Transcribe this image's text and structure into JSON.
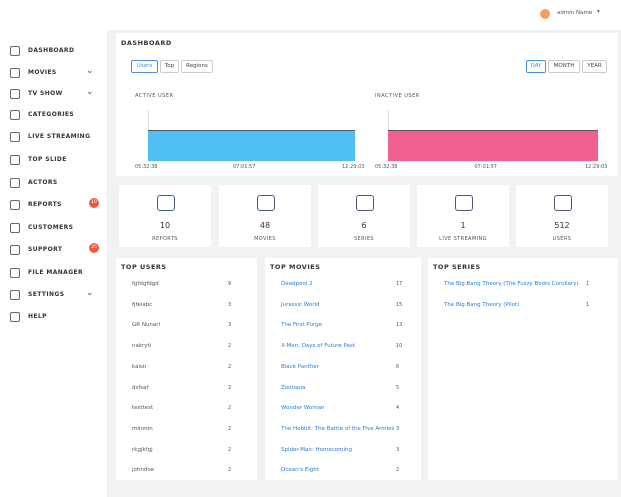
{
  "header": {
    "user": "admin Name"
  },
  "sidebar": {
    "items": [
      {
        "label": "DASHBOARD"
      },
      {
        "label": "MOVIES"
      },
      {
        "label": "TV SHOW"
      },
      {
        "label": "CATEGORIES"
      },
      {
        "label": "LIVE STREAMING"
      },
      {
        "label": "TOP SLIDE"
      },
      {
        "label": "ACTORS"
      },
      {
        "label": "REPORTS",
        "badge": 10
      },
      {
        "label": "CUSTOMERS"
      },
      {
        "label": "SUPPORT",
        "badge": 25
      },
      {
        "label": "FILE MANAGER"
      },
      {
        "label": "SETTINGS"
      },
      {
        "label": "HELP"
      }
    ]
  },
  "dashboard": {
    "title": "DASHBOARD",
    "tabs": [
      "Users",
      "Top",
      "Regions"
    ],
    "ranges": [
      "DAY",
      "MONTH",
      "YEAR"
    ],
    "charts": [
      {
        "title": "ACTIVE USER",
        "x": [
          "05:32:38",
          "07:01:57",
          "12:29:03"
        ],
        "color": "#4fc0f3"
      },
      {
        "title": "INACTIVE USER",
        "x": [
          "05:32:38",
          "07:01:57",
          "12:29:03"
        ],
        "color": "#f06090"
      }
    ]
  },
  "stats": [
    {
      "value": 10,
      "label": "REPORTS"
    },
    {
      "value": 48,
      "label": "MOVIES"
    },
    {
      "value": 6,
      "label": "SERIES"
    },
    {
      "value": 1,
      "label": "LIVE STREAMING"
    },
    {
      "value": 512,
      "label": "USERS"
    }
  ],
  "top_users": {
    "title": "TOP USERS",
    "rows": [
      [
        "fgfdgfdgd",
        9
      ],
      [
        "fjfeiabc",
        3
      ],
      [
        "GR Nunari",
        3
      ],
      [
        "nakryti",
        2
      ],
      [
        "kaisir",
        2
      ],
      [
        "dsfsaf",
        2
      ],
      [
        "testtest",
        2
      ],
      [
        "minmin",
        2
      ],
      [
        "rkgjkfgj",
        2
      ],
      [
        "johndoe",
        2
      ]
    ]
  },
  "top_movies": {
    "title": "TOP MOVIES",
    "rows": [
      [
        "Deadpool 2",
        17
      ],
      [
        "Jurassic World",
        15
      ],
      [
        "The First Purge",
        13
      ],
      [
        "X-Men: Days of Future Past",
        10
      ],
      [
        "Black Panther",
        6
      ],
      [
        "Zootopia",
        5
      ],
      [
        "Wonder Woman",
        4
      ],
      [
        "The Hobbit: The Battle of the Five Armies",
        3
      ],
      [
        "Spider-Man: Homecoming",
        3
      ],
      [
        "Ocean's Eight",
        2
      ]
    ]
  },
  "top_series": {
    "title": "TOP SERIES",
    "rows": [
      [
        "The Big Bang Theory (The Fuzzy Boots Corollary)",
        1
      ],
      [
        "The Big Bang Theory (Pilot)",
        1
      ]
    ]
  }
}
